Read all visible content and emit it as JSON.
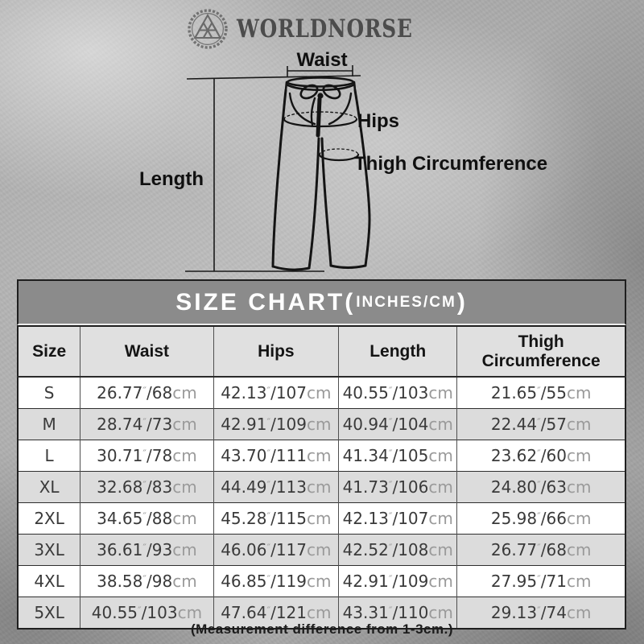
{
  "brand": {
    "name": "WORLDNORSE",
    "logo_icon": "valknut-ring-icon"
  },
  "diagram": {
    "labels": {
      "waist": "Waist",
      "hips": "Hips",
      "thigh": "Thigh Circumference",
      "length": "Length"
    }
  },
  "size_chart": {
    "title": {
      "main": "SIZE CHART(",
      "sub": "INCHES/CM",
      "close": ")"
    },
    "columns": [
      "Size",
      "Waist",
      "Hips",
      "Length",
      "Thigh Circumference"
    ],
    "unit_inch_mark": "″",
    "unit_cm": "cm",
    "rows": [
      {
        "size": "S",
        "waist": [
          "26.77",
          "68"
        ],
        "hips": [
          "42.13",
          "107"
        ],
        "length": [
          "40.55",
          "103"
        ],
        "thigh": [
          "21.65",
          "55"
        ]
      },
      {
        "size": "M",
        "waist": [
          "28.74",
          "73"
        ],
        "hips": [
          "42.91",
          "109"
        ],
        "length": [
          "40.94",
          "104"
        ],
        "thigh": [
          "22.44",
          "57"
        ]
      },
      {
        "size": "L",
        "waist": [
          "30.71",
          "78"
        ],
        "hips": [
          "43.70",
          "111"
        ],
        "length": [
          "41.34",
          "105"
        ],
        "thigh": [
          "23.62",
          "60"
        ]
      },
      {
        "size": "XL",
        "waist": [
          "32.68",
          "83"
        ],
        "hips": [
          "44.49",
          "113"
        ],
        "length": [
          "41.73",
          "106"
        ],
        "thigh": [
          "24.80",
          "63"
        ]
      },
      {
        "size": "2XL",
        "waist": [
          "34.65",
          "88"
        ],
        "hips": [
          "45.28",
          "115"
        ],
        "length": [
          "42.13",
          "107"
        ],
        "thigh": [
          "25.98",
          "66"
        ]
      },
      {
        "size": "3XL",
        "waist": [
          "36.61",
          "93"
        ],
        "hips": [
          "46.06",
          "117"
        ],
        "length": [
          "42.52",
          "108"
        ],
        "thigh": [
          "26.77",
          "68"
        ]
      },
      {
        "size": "4XL",
        "waist": [
          "38.58",
          "98"
        ],
        "hips": [
          "46.85",
          "119"
        ],
        "length": [
          "42.91",
          "109"
        ],
        "thigh": [
          "27.95",
          "71"
        ]
      },
      {
        "size": "5XL",
        "waist": [
          "40.55",
          "103"
        ],
        "hips": [
          "47.64",
          "121"
        ],
        "length": [
          "43.31",
          "110"
        ],
        "thigh": [
          "29.13",
          "74"
        ]
      }
    ],
    "footnote": "(Measurement difference from 1-3cm.)"
  },
  "colors": {
    "title_band_bg": "#8b8b8b",
    "header_row_bg": "#e0e0e0",
    "alt_row_bg": "#dcdcdc",
    "table_border": "#1f1f1f",
    "value_text": "#3a3a3a",
    "unit_text": "#9a9a9a",
    "background": "#b4b4b4"
  }
}
